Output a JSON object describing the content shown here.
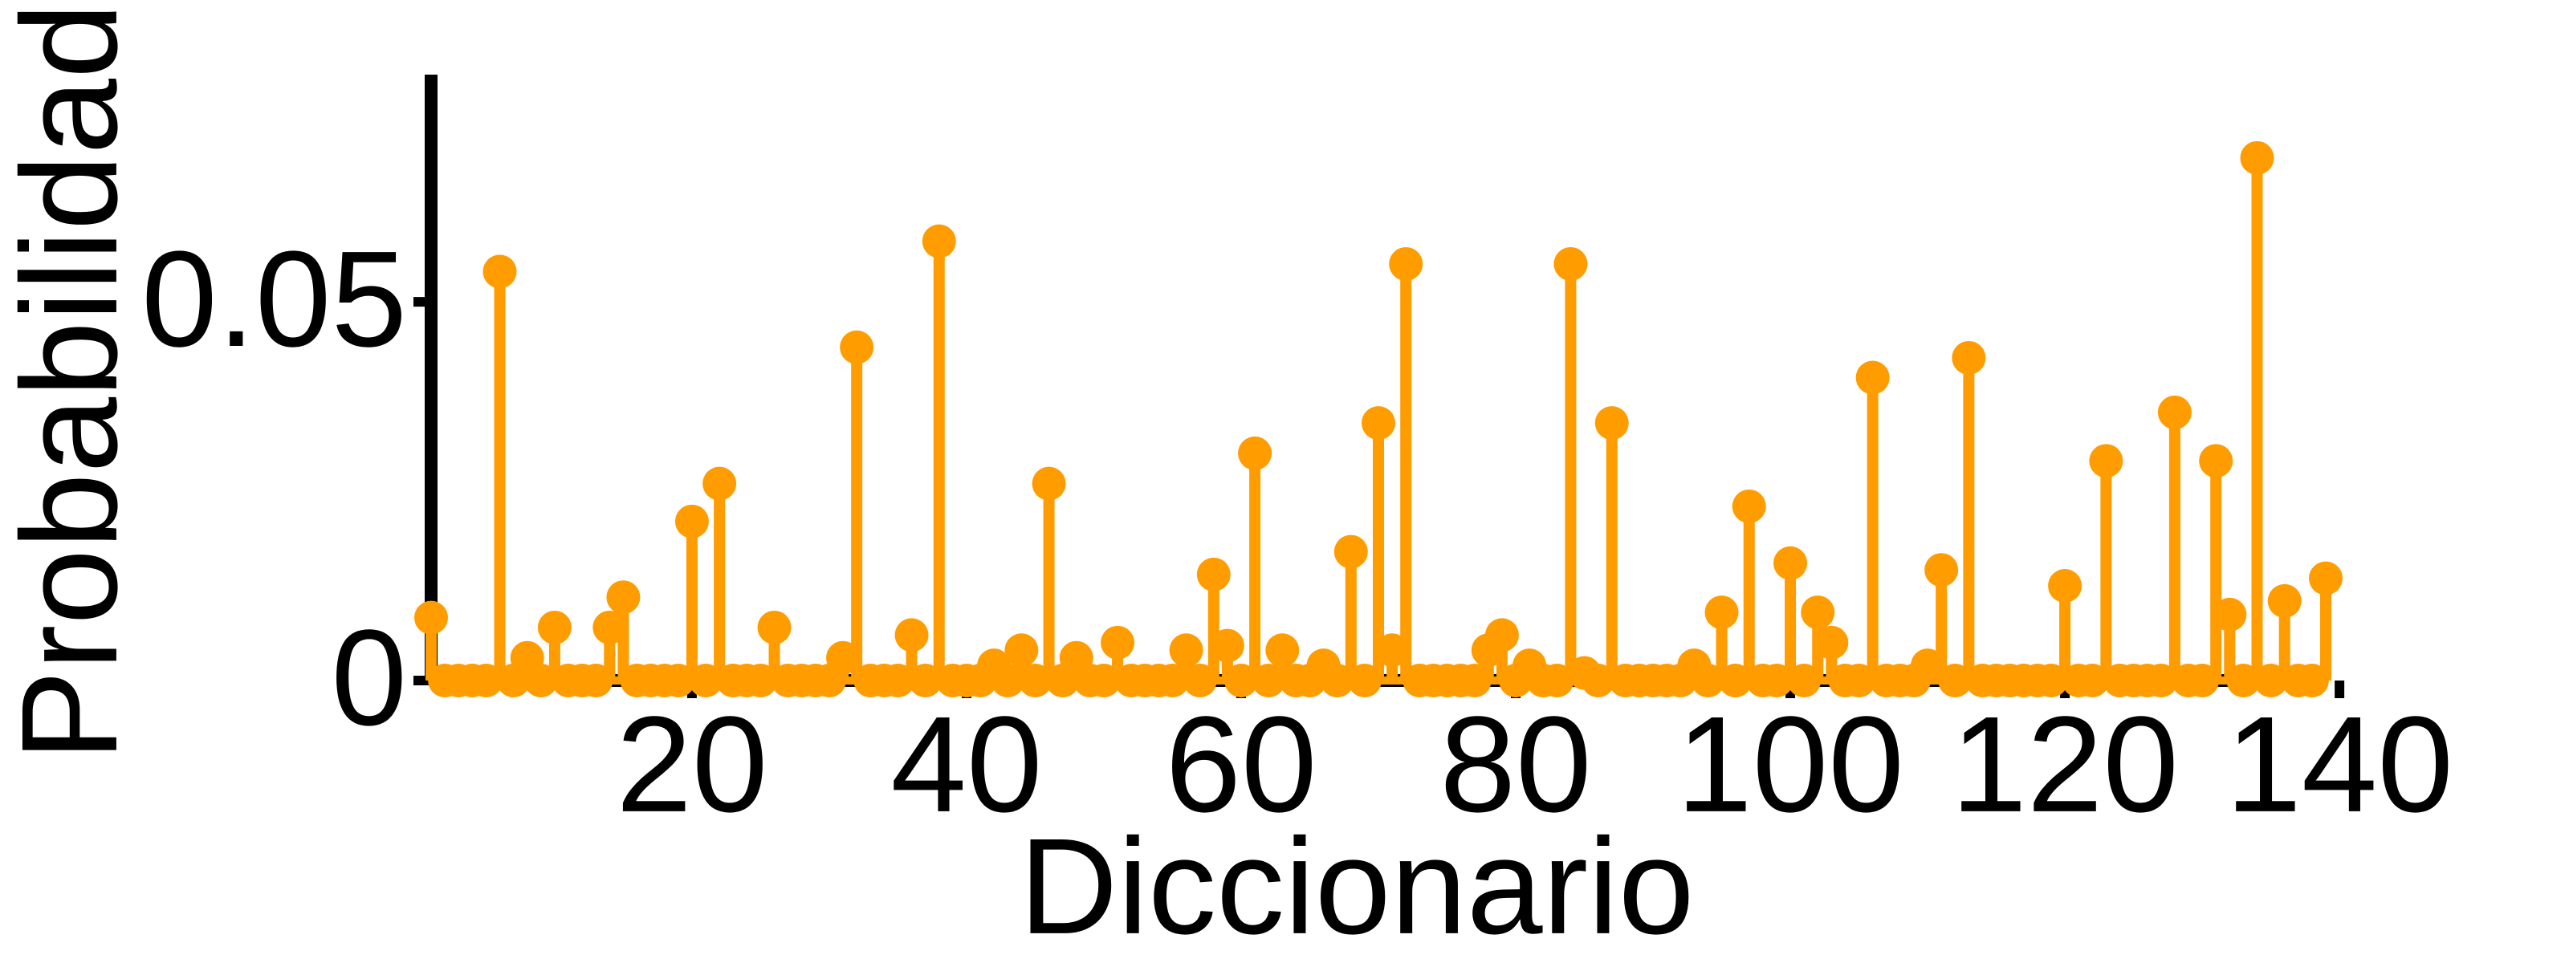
{
  "chart_data": {
    "type": "stem",
    "x_label": "Diccionario",
    "y_label": "Probabilidad",
    "color": "#ff9c00",
    "x": [
      1,
      2,
      3,
      4,
      5,
      6,
      7,
      8,
      9,
      10,
      11,
      12,
      13,
      14,
      15,
      16,
      17,
      18,
      19,
      20,
      21,
      22,
      23,
      24,
      25,
      26,
      27,
      28,
      29,
      30,
      31,
      32,
      33,
      34,
      35,
      36,
      37,
      38,
      39,
      40,
      41,
      42,
      43,
      44,
      45,
      46,
      47,
      48,
      49,
      50,
      51,
      52,
      53,
      54,
      55,
      56,
      57,
      58,
      59,
      60,
      61,
      62,
      63,
      64,
      65,
      66,
      67,
      68,
      69,
      70,
      71,
      72,
      73,
      74,
      75,
      76,
      77,
      78,
      79,
      80,
      81,
      82,
      83,
      84,
      85,
      86,
      87,
      88,
      89,
      90,
      91,
      92,
      93,
      94,
      95,
      96,
      97,
      98,
      99,
      100,
      101,
      102,
      103,
      104,
      105,
      106,
      107,
      108,
      109,
      110,
      111,
      112,
      113,
      114,
      115,
      116,
      117,
      118,
      119,
      120,
      121,
      122,
      123,
      124,
      125,
      126,
      127,
      128,
      129,
      130,
      131,
      132,
      133,
      134,
      135,
      136,
      137,
      138,
      139
    ],
    "values": [
      0.0083,
      0,
      0,
      0,
      0,
      0.054,
      0,
      0.003,
      0,
      0.007,
      0,
      0,
      0,
      0.007,
      0.011,
      0,
      0,
      0,
      0,
      0.021,
      0,
      0.026,
      0,
      0,
      0,
      0.007,
      0,
      0,
      0,
      0,
      0.003,
      0.044,
      0,
      0,
      0,
      0.006,
      0,
      0.058,
      0,
      0,
      0,
      0.002,
      0,
      0.004,
      0,
      0.026,
      0,
      0.003,
      0,
      0,
      0.005,
      0,
      0,
      0,
      0,
      0.004,
      0,
      0.014,
      0.0046,
      0,
      0.03,
      0,
      0.004,
      0,
      0,
      0.002,
      0,
      0.017,
      0,
      0.034,
      0.004,
      0.055,
      0,
      0,
      0,
      0,
      0,
      0.004,
      0.006,
      0,
      0.002,
      0,
      0,
      0.055,
      0.001,
      0,
      0.034,
      0,
      0,
      0,
      0,
      0,
      0.002,
      0,
      0.009,
      0,
      0.023,
      0,
      0,
      0.0155,
      0,
      0.009,
      0.005,
      0,
      0,
      0.04,
      0,
      0,
      0,
      0.002,
      0.0146,
      0,
      0.0426,
      0,
      0,
      0,
      0,
      0,
      0,
      0.0125,
      0,
      0,
      0.029,
      0,
      0,
      0,
      0,
      0.0354,
      0,
      0,
      0.029,
      0.0087,
      0,
      0.069,
      0,
      0.0105,
      0,
      0,
      0.0135
    ],
    "xlim": [
      1,
      139
    ],
    "xticks": [
      20,
      40,
      60,
      80,
      100,
      120,
      140
    ],
    "ylim": [
      0,
      0.08
    ],
    "yticks": [
      0,
      0.05
    ]
  }
}
